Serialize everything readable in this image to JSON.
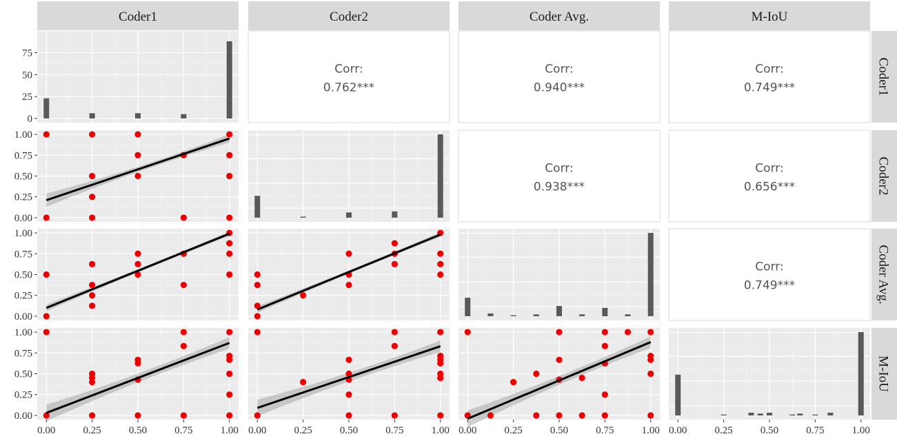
{
  "chart_data": {
    "type": "scatterplot-matrix",
    "variables": [
      "Coder1",
      "Coder2",
      "Coder Avg.",
      "M-IoU"
    ],
    "corr_label": "Corr:",
    "correlations": [
      {
        "row": 0,
        "col": 1,
        "value": "0.762***"
      },
      {
        "row": 0,
        "col": 2,
        "value": "0.940***"
      },
      {
        "row": 0,
        "col": 3,
        "value": "0.749***"
      },
      {
        "row": 1,
        "col": 2,
        "value": "0.938***"
      },
      {
        "row": 1,
        "col": 3,
        "value": "0.656***"
      },
      {
        "row": 2,
        "col": 3,
        "value": "0.749***"
      }
    ],
    "x_ticks": [
      0.0,
      0.25,
      0.5,
      0.75,
      1.0
    ],
    "x_tick_labels": [
      "0.00",
      "0.25",
      "0.50",
      "0.75",
      "1.00"
    ],
    "y_ticks": [
      0.0,
      0.25,
      0.5,
      0.75,
      1.0
    ],
    "y_tick_labels": [
      "0.00",
      "0.25",
      "0.50",
      "0.75",
      "1.00"
    ],
    "count_ticks": [
      0,
      25,
      50,
      75
    ],
    "count_tick_labels": [
      "0",
      "25",
      "50",
      "75"
    ],
    "histograms": {
      "Coder1": {
        "x": [
          0,
          0.25,
          0.5,
          0.75,
          1.0
        ],
        "counts": [
          23,
          6,
          6,
          5,
          88
        ],
        "ylim": [
          0,
          95
        ]
      },
      "Coder2": {
        "x": [
          0,
          0.25,
          0.5,
          0.75,
          1.0
        ],
        "counts": [
          21,
          1,
          5,
          6,
          80
        ],
        "ylim": [
          0,
          80
        ]
      },
      "Coder Avg.": {
        "x": [
          0,
          0.125,
          0.25,
          0.375,
          0.5,
          0.625,
          0.75,
          0.875,
          1.0
        ],
        "counts": [
          20,
          3,
          1,
          2,
          11,
          2,
          9,
          2,
          90
        ],
        "ylim": [
          0,
          90
        ]
      },
      "M-IoU": {
        "x": [
          0,
          0.25,
          0.4,
          0.45,
          0.5,
          0.625,
          0.667,
          0.75,
          0.833,
          1.0
        ],
        "counts": [
          45,
          1,
          3,
          2,
          3,
          1,
          2,
          1,
          3,
          92
        ],
        "ylim": [
          0,
          92
        ]
      }
    },
    "scatter": [
      {
        "row": 1,
        "col": 0,
        "points": [
          [
            0,
            1
          ],
          [
            0,
            0
          ],
          [
            0.25,
            1
          ],
          [
            0.25,
            0.5
          ],
          [
            0.25,
            0.25
          ],
          [
            0.25,
            0
          ],
          [
            0.5,
            1
          ],
          [
            0.5,
            0.75
          ],
          [
            0.5,
            0.5
          ],
          [
            0.75,
            0.75
          ],
          [
            0.75,
            0
          ],
          [
            1,
            1
          ],
          [
            1,
            0.75
          ],
          [
            1,
            0.5
          ],
          [
            1,
            0
          ]
        ],
        "fit": [
          0.21,
          0.95
        ],
        "band": [
          0.08,
          0.03
        ]
      },
      {
        "row": 2,
        "col": 0,
        "points": [
          [
            0,
            0.5
          ],
          [
            0,
            0
          ],
          [
            0.25,
            0.625
          ],
          [
            0.25,
            0.375
          ],
          [
            0.25,
            0.25
          ],
          [
            0.25,
            0.125
          ],
          [
            0.5,
            0.75
          ],
          [
            0.5,
            0.625
          ],
          [
            0.5,
            0.5
          ],
          [
            0.75,
            0.75
          ],
          [
            0.75,
            0.375
          ],
          [
            1,
            1
          ],
          [
            1,
            0.875
          ],
          [
            1,
            0.75
          ],
          [
            1,
            0.5
          ]
        ],
        "fit": [
          0.1,
          0.99
        ],
        "band": [
          0.04,
          0.02
        ]
      },
      {
        "row": 2,
        "col": 1,
        "points": [
          [
            0,
            0.5
          ],
          [
            0,
            0.375
          ],
          [
            0,
            0.125
          ],
          [
            0,
            0
          ],
          [
            0.25,
            0.25
          ],
          [
            0.5,
            0.75
          ],
          [
            0.5,
            0.5
          ],
          [
            0.5,
            0.375
          ],
          [
            0.75,
            0.875
          ],
          [
            0.75,
            0.75
          ],
          [
            0.75,
            0.625
          ],
          [
            1,
            1
          ],
          [
            1,
            0.75
          ],
          [
            1,
            0.625
          ],
          [
            1,
            0.5
          ]
        ],
        "fit": [
          0.08,
          0.98
        ],
        "band": [
          0.04,
          0.02
        ]
      },
      {
        "row": 3,
        "col": 0,
        "points": [
          [
            0,
            1
          ],
          [
            0,
            0
          ],
          [
            0.25,
            0.5
          ],
          [
            0.25,
            0.45
          ],
          [
            0.25,
            0.4
          ],
          [
            0.25,
            0
          ],
          [
            0.5,
            0.667
          ],
          [
            0.5,
            0.625
          ],
          [
            0.5,
            0.43
          ],
          [
            0.5,
            0
          ],
          [
            0.75,
            1
          ],
          [
            0.75,
            0.833
          ],
          [
            0.75,
            0
          ],
          [
            1,
            1
          ],
          [
            1,
            0.714
          ],
          [
            1,
            0.667
          ],
          [
            1,
            0.5
          ],
          [
            1,
            0.25
          ],
          [
            1,
            0
          ]
        ],
        "fit": [
          0.03,
          0.87
        ],
        "band": [
          0.1,
          0.05
        ]
      },
      {
        "row": 3,
        "col": 1,
        "points": [
          [
            0,
            1
          ],
          [
            0,
            0
          ],
          [
            0.25,
            0.4
          ],
          [
            0.5,
            0.667
          ],
          [
            0.5,
            0.5
          ],
          [
            0.5,
            0.43
          ],
          [
            0.5,
            0.25
          ],
          [
            0.5,
            0
          ],
          [
            0.75,
            1
          ],
          [
            0.75,
            0.833
          ],
          [
            0.75,
            0
          ],
          [
            1,
            1
          ],
          [
            1,
            0.714
          ],
          [
            1,
            0.667
          ],
          [
            1,
            0.625
          ],
          [
            1,
            0.5
          ],
          [
            1,
            0.45
          ],
          [
            1,
            0
          ]
        ],
        "fit": [
          0.09,
          0.83
        ],
        "band": [
          0.1,
          0.05
        ]
      },
      {
        "row": 3,
        "col": 2,
        "points": [
          [
            0,
            1
          ],
          [
            0,
            0
          ],
          [
            0.125,
            0
          ],
          [
            0.25,
            0.4
          ],
          [
            0.375,
            0.5
          ],
          [
            0.375,
            0
          ],
          [
            0.5,
            1
          ],
          [
            0.5,
            0.667
          ],
          [
            0.5,
            0.43
          ],
          [
            0.5,
            0
          ],
          [
            0.625,
            0.45
          ],
          [
            0.625,
            0
          ],
          [
            0.75,
            1
          ],
          [
            0.75,
            0.833
          ],
          [
            0.75,
            0.625
          ],
          [
            0.75,
            0.25
          ],
          [
            0.75,
            0
          ],
          [
            0.875,
            1
          ],
          [
            1,
            1
          ],
          [
            1,
            0.714
          ],
          [
            1,
            0.667
          ],
          [
            1,
            0.5
          ],
          [
            1,
            0
          ]
        ],
        "fit": [
          -0.04,
          0.88
        ],
        "band": [
          0.1,
          0.05
        ]
      }
    ],
    "colors": {
      "panel_bg": "#ebebeb",
      "grid_major": "#ffffff",
      "grid_minor": "#f5f5f5",
      "strip_bg": "#d9d9d9",
      "point": "#ee0000",
      "line": "#000000",
      "band": "#999999",
      "bar": "#595959"
    }
  }
}
